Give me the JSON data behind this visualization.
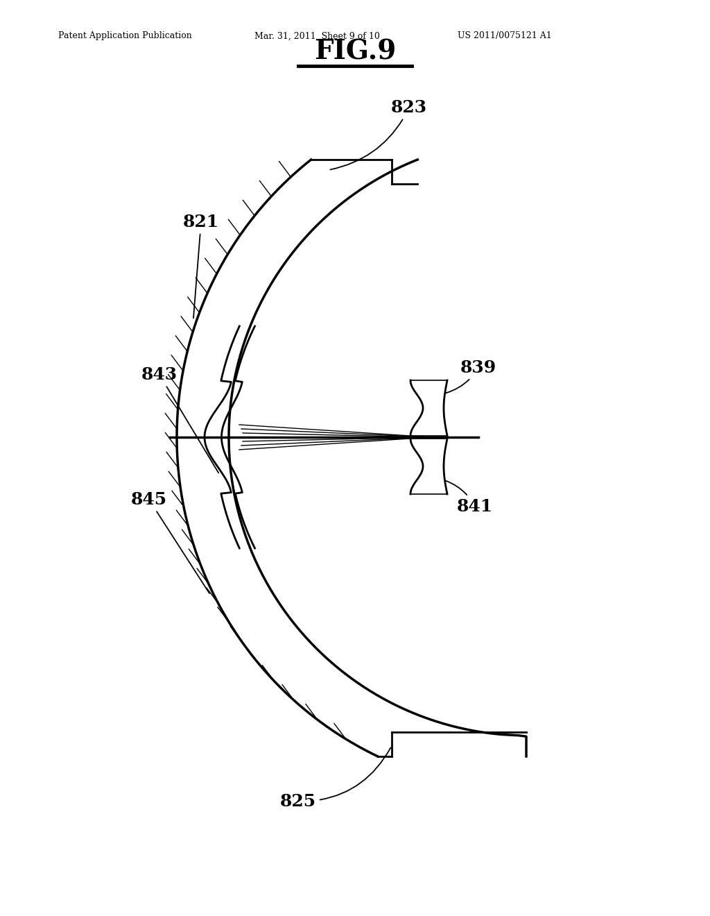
{
  "title": "FIG.9",
  "patent_header_left": "Patent Application Publication",
  "patent_header_mid": "Mar. 31, 2011  Sheet 9 of 10",
  "patent_header_right": "US 2011/0075121 A1",
  "bg_color": "#ffffff",
  "line_color": "#000000"
}
